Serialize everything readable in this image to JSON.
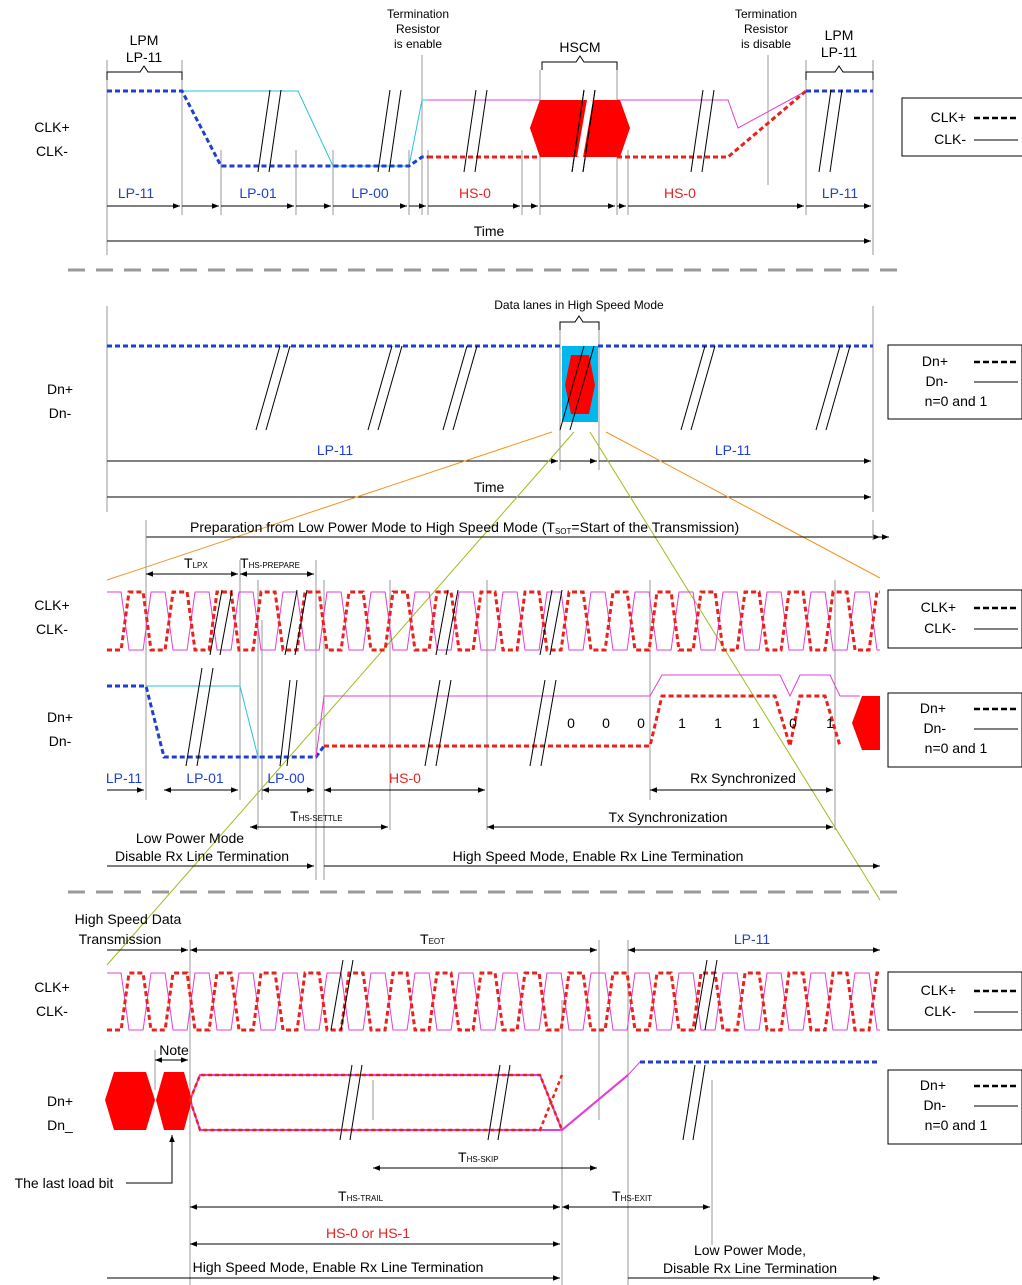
{
  "colors": {
    "lp_blue": "#1f3fcf",
    "hs_red": "#e8221e",
    "cyan_line": "#27c3d8",
    "magenta_line": "#e23fd8",
    "orange_line": "#f39422",
    "olive_line": "#9cbd1c",
    "separator_gray": "#9a9a9a",
    "solid_red": "#ff0000",
    "cyan_fill": "#00b7ee"
  },
  "legends": {
    "clk_plus": "CLK+",
    "clk_minus": "CLK-",
    "dn_plus": "Dn+",
    "dn_minus": "Dn-",
    "n_note": "n=0 and 1"
  },
  "section1": {
    "lpm": "LPM",
    "lp11_top": "LP-11",
    "term_enable": [
      "Termination",
      "Resistor",
      "is enable"
    ],
    "term_disable": [
      "Termination",
      "Resistor",
      "is disable"
    ],
    "hscm": "HSCM",
    "lpm_right": "LPM",
    "lp11_right_top": "LP-11",
    "sig_clk_plus": "CLK+",
    "sig_clk_minus": "CLK-",
    "states": [
      "LP-11",
      "LP-01",
      "LP-00",
      "HS-0",
      "HS-0",
      "LP-11"
    ],
    "time": "Time"
  },
  "section2": {
    "data_lanes": "Data lanes in High Speed Mode",
    "sig_dn_plus": "Dn+",
    "sig_dn_minus": "Dn-",
    "lp11_left": "LP-11",
    "lp11_right": "LP-11",
    "time": "Time"
  },
  "section3": {
    "prep_main": "Preparation from Low Power Mode to High Speed Mode (T",
    "prep_sub": "SOT",
    "prep_tail": "=Start of the Transmission)",
    "tlpx_t": "T",
    "tlpx_sub": "LPX",
    "thsprep_t": "T",
    "thsprep_sub": "HS-PREPARE",
    "sig_clk_plus": "CLK+",
    "sig_clk_minus": "CLK-",
    "sig_dn_plus": "Dn+",
    "sig_dn_minus": "Dn-",
    "bits": [
      "0",
      "0",
      "0",
      "1",
      "1",
      "1",
      "0",
      "1"
    ],
    "states": [
      "LP-11",
      "LP-01",
      "LP-00",
      "HS-0"
    ],
    "rx_sync": "Rx Synchronized",
    "thssettle_t": "T",
    "thssettle_sub": "HS-SETTLE",
    "tx_sync": "Tx Synchronization",
    "lpm_line1": "Low Power Mode",
    "lpm_line2": "Disable Rx Line Termination",
    "hsm": "High Speed Mode, Enable Rx Line Termination"
  },
  "section4": {
    "hsdt_line1": "High Speed Data",
    "hsdt_line2": "Transmission",
    "teot_t": "T",
    "teot_sub": "EOT",
    "lp11": "LP-11",
    "sig_clk_plus": "CLK+",
    "sig_clk_minus": "CLK-",
    "note": "Note",
    "sig_dn_plus": "Dn+",
    "sig_dn_minus": "Dn_",
    "last_load_bit": "The last load bit",
    "thsskip_t": "T",
    "thsskip_sub": "HS-SKIP",
    "thstrail_t": "T",
    "thstrail_sub": "HS-TRAIL",
    "thsexit_t": "T",
    "thsexit_sub": "HS-EXIT",
    "hs0or1": "HS-0 or HS-1",
    "hsm": "High Speed Mode, Enable Rx Line Termination",
    "lpm_line1": "Low Power Mode,",
    "lpm_line2": "Disable Rx Line Termination"
  }
}
